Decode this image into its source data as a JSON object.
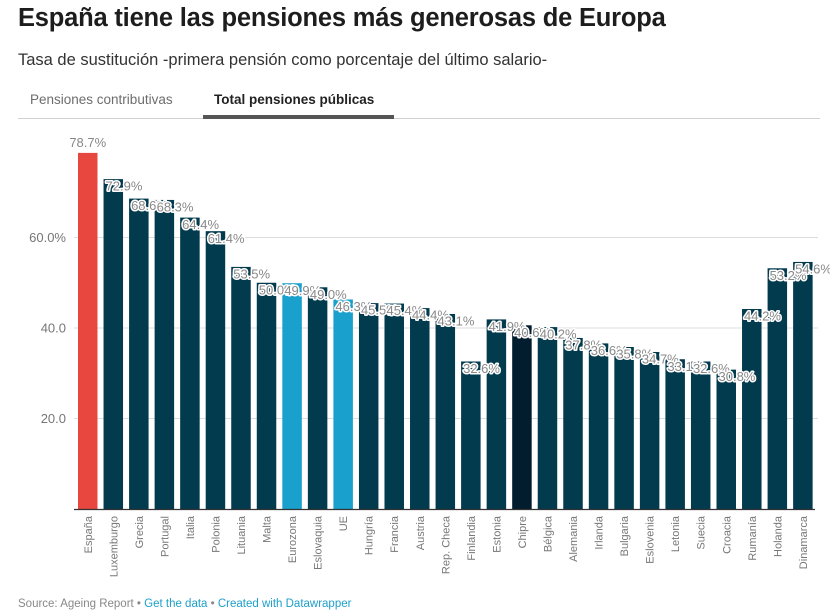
{
  "header": {
    "title": "España tiene las pensiones más generosas de Europa",
    "subtitle": "Tasa de sustitución -primera pensión como porcentaje del último salario-"
  },
  "tabs": [
    {
      "label": "Pensiones contributivas",
      "active": false
    },
    {
      "label": "Total pensiones públicas",
      "active": true
    }
  ],
  "footer": {
    "source": "Source: Ageing Report",
    "separator": " • ",
    "get_data": "Get the data",
    "created_with": "Created with Datawrapper"
  },
  "colors": {
    "highlight": "#e8473f",
    "default": "#023a4e",
    "aggregate": "#1aa0cd",
    "dark": "#021d2e",
    "grid": "#dddddd",
    "axis": "#333333"
  },
  "chart_data": {
    "type": "bar",
    "title": "España tiene las pensiones más generosas de Europa",
    "subtitle": "Tasa de sustitución -primera pensión como porcentaje del último salario-",
    "xlabel": "",
    "ylabel": "",
    "ylim": [
      0,
      80
    ],
    "grid": true,
    "yticks": [
      {
        "value": 20,
        "label": "20.0"
      },
      {
        "value": 40,
        "label": "40.0"
      },
      {
        "value": 60,
        "label": "60.0%"
      }
    ],
    "categories": [
      "España",
      "Luxemburgo",
      "Grecia",
      "Portugal",
      "Italia",
      "Polonia",
      "Lituania",
      "Malta",
      "Eurozona",
      "Eslovaquia",
      "UE",
      "Hungría",
      "Francia",
      "Austria",
      "Rep. Checa",
      "Finlandia",
      "Estonia",
      "Chipre",
      "Bélgica",
      "Alemania",
      "Irlanda",
      "Bulgaria",
      "Eslovenia",
      "Letonia",
      "Suecia",
      "Croacia",
      "Rumanía",
      "Holanda",
      "Dinamarca"
    ],
    "values": [
      78.7,
      72.9,
      68.6,
      68.3,
      64.4,
      61.4,
      53.5,
      50.0,
      49.9,
      49.0,
      46.3,
      45.5,
      45.4,
      44.4,
      43.1,
      32.6,
      41.9,
      40.6,
      40.2,
      37.8,
      36.6,
      35.8,
      34.7,
      33.1,
      32.6,
      30.8,
      44.2,
      53.2,
      54.6
    ],
    "labels": [
      "78.7%",
      "72.9%",
      "68.6%",
      "68.3%",
      "64.4%",
      "61.4%",
      "53.5%",
      "50.0%",
      "49.9%",
      "49.0%",
      "46.3%",
      "45.5%",
      "45.4%",
      "44.4%",
      "43.1%",
      "32.6%",
      "41.9%",
      "40.6%",
      "40.2%",
      "37.8%",
      "36.6%",
      "35.8%",
      "34.7%",
      "33.1%",
      "32.6%",
      "30.8%",
      "44.2%",
      "53.2%",
      "54.6%"
    ],
    "bar_colors": [
      "highlight",
      "default",
      "default",
      "default",
      "default",
      "default",
      "default",
      "default",
      "aggregate",
      "default",
      "aggregate",
      "default",
      "default",
      "default",
      "default",
      "default",
      "default",
      "dark",
      "default",
      "default",
      "default",
      "default",
      "default",
      "default",
      "default",
      "default",
      "default",
      "default",
      "default"
    ]
  }
}
